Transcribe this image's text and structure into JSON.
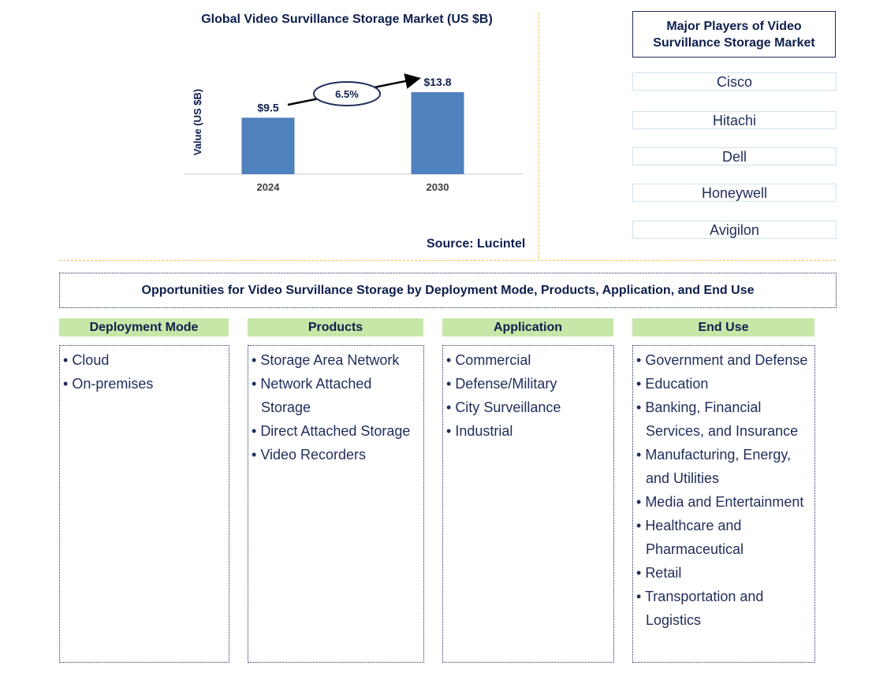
{
  "chart_data": {
    "type": "bar",
    "title": "Global Video Survillance Storage Market (US $B)",
    "ylabel": "Value (US $B)",
    "categories": [
      "2024",
      "2030"
    ],
    "values": [
      9.5,
      13.8
    ],
    "value_labels": [
      "$9.5",
      "$13.8"
    ],
    "cagr_label": "6.5%",
    "bar_color": "#4e81bd",
    "source": "Source: Lucintel"
  },
  "players": {
    "title": "Major Players of Video Survillance Storage Market",
    "items": [
      "Cisco",
      "Hitachi",
      "Dell",
      "Honeywell",
      "Avigilon"
    ]
  },
  "opportunities": {
    "title": "Opportunities for Video Survillance Storage by Deployment Mode, Products, Application, and End Use",
    "categories": [
      {
        "header": "Deployment Mode",
        "items": [
          "Cloud",
          "On-premises"
        ]
      },
      {
        "header": "Products",
        "items": [
          "Storage Area Network",
          "Network Attached Storage",
          "Direct Attached Storage",
          "Video Recorders"
        ]
      },
      {
        "header": "Application",
        "items": [
          "Commercial",
          "Defense/Military",
          "City Surveillance",
          "Industrial"
        ]
      },
      {
        "header": "End Use",
        "items": [
          "Government and Defense",
          "Education",
          "Banking, Financial Services, and Insurance",
          "Manufacturing, Energy, and Utilities",
          "Media and Entertainment",
          "Healthcare and Pharmaceutical",
          "Retail",
          "Transportation and Logistics"
        ]
      }
    ]
  }
}
